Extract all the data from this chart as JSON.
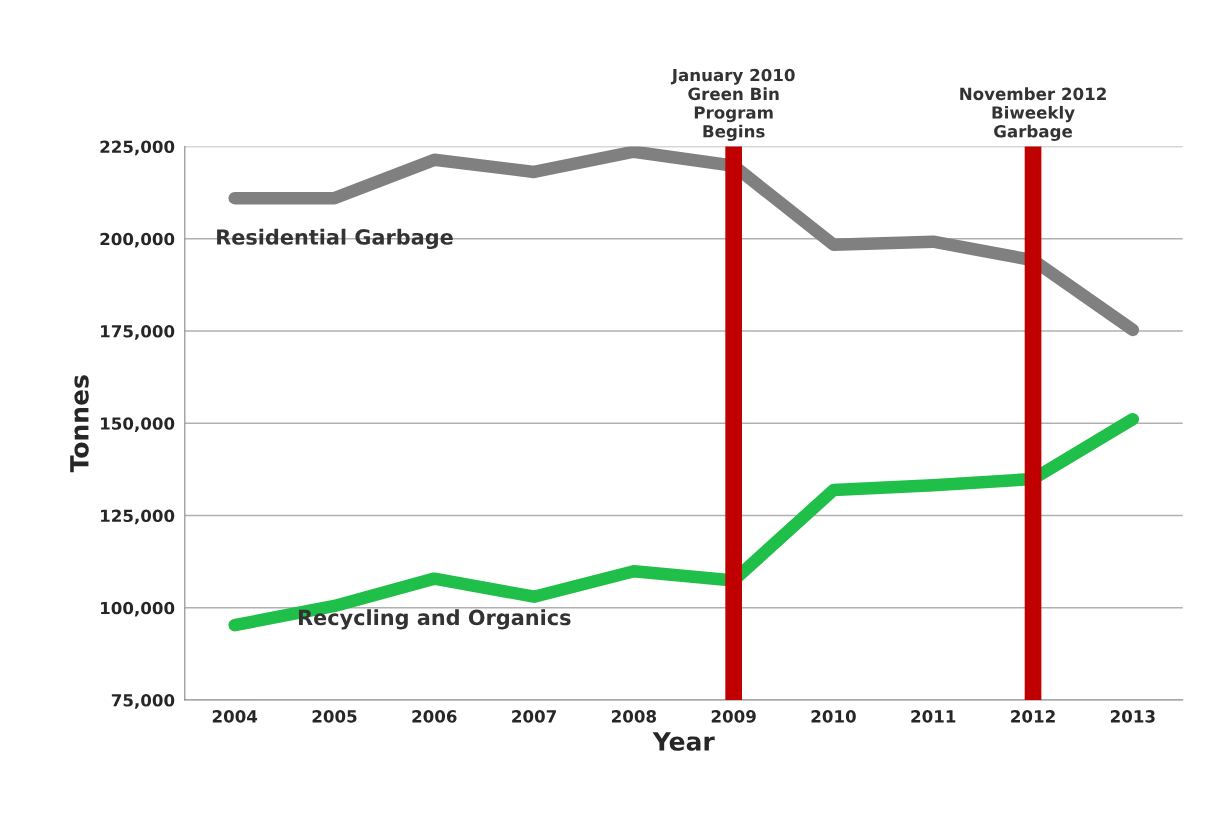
{
  "chart_data": {
    "type": "line",
    "xlabel": "Year",
    "ylabel": "Tonnes",
    "x": [
      2004,
      2005,
      2006,
      2007,
      2008,
      2009,
      2010,
      2011,
      2012,
      2013
    ],
    "xlim": [
      2003.5,
      2013.5
    ],
    "xticks": [
      2004,
      2005,
      2006,
      2007,
      2008,
      2009,
      2010,
      2011,
      2012,
      2013
    ],
    "ylim": [
      75000,
      225000
    ],
    "yticks": [
      {
        "value": 75000,
        "label": "75,000"
      },
      {
        "value": 100000,
        "label": "100,000"
      },
      {
        "value": 125000,
        "label": "125,000"
      },
      {
        "value": 150000,
        "label": "150,000"
      },
      {
        "value": 175000,
        "label": "175,000"
      },
      {
        "value": 200000,
        "label": "200,000"
      },
      {
        "value": 225000,
        "label": "225,000"
      }
    ],
    "grid": "y",
    "legend": false,
    "marker": "none",
    "line_style": "solid",
    "series": [
      {
        "name": "Residential Garbage",
        "color": "#808080",
        "values": [
          211000,
          211000,
          221400,
          218100,
          223600,
          219800,
          198400,
          199200,
          194200,
          175300
        ]
      },
      {
        "name": "Recycling and Organics",
        "color": "#1fbf4a",
        "values": [
          95300,
          100500,
          107900,
          103000,
          109900,
          107400,
          131900,
          133200,
          134900,
          151100
        ]
      }
    ],
    "ref_lines": [
      {
        "axis": "x",
        "value": 2009,
        "label": "January 2010\nGreen Bin\nProgram\nBegins",
        "color": "#c00000"
      },
      {
        "axis": "x",
        "value": 2012,
        "label": "November 2012\nBiweekly\nGarbage",
        "color": "#c00000"
      }
    ]
  }
}
